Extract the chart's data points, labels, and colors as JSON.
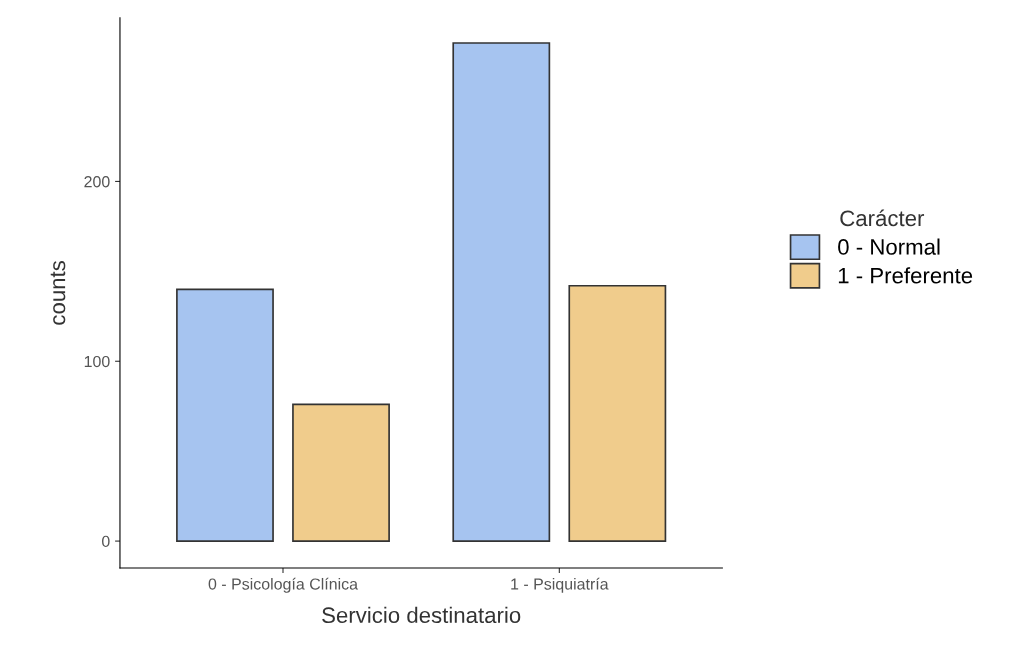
{
  "chart_data": {
    "type": "bar",
    "xlabel": "Servicio destinatario",
    "ylabel": "counts",
    "legend_title": "Carácter",
    "categories": [
      "0 - Psicología Clínica",
      "1 - Psiquiatría"
    ],
    "series": [
      {
        "name": "0 - Normal",
        "color": "#a6c4f0",
        "values": [
          140,
          277
        ]
      },
      {
        "name": "1 - Preferente",
        "color": "#f0cc8c",
        "values": [
          76,
          142
        ]
      }
    ],
    "ylim": [
      -15,
      291
    ],
    "yticks": [
      0,
      100,
      200
    ],
    "grid": false,
    "legend": "right"
  }
}
